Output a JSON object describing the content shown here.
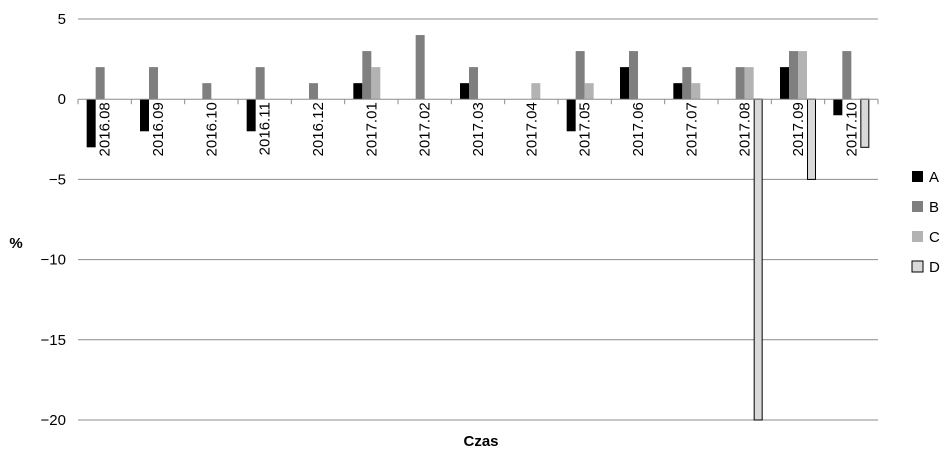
{
  "chart_data": {
    "type": "bar",
    "title": "",
    "xlabel": "Czas",
    "ylabel": "%",
    "ylim": [
      -20,
      5
    ],
    "yticks": [
      5,
      0,
      -5,
      -10,
      -15,
      -20
    ],
    "ytick_labels": [
      "5",
      "0",
      "−5",
      "−10",
      "−15",
      "−20"
    ],
    "grid": true,
    "legend_position": "right",
    "categories": [
      "2016.08",
      "2016.09",
      "2016.10",
      "2016.11",
      "2016.12",
      "2017.01",
      "2017.02",
      "2017.03",
      "2017.04",
      "2017.05",
      "2017.06",
      "2017.07",
      "2017.08",
      "2017.09",
      "2017.10"
    ],
    "series": [
      {
        "name": "A",
        "color": "#000000",
        "values": [
          -3,
          -2,
          0,
          -2,
          0,
          1,
          0,
          1,
          0,
          -2,
          2,
          1,
          0,
          2,
          -1
        ]
      },
      {
        "name": "B",
        "color": "#7f7f7f",
        "values": [
          2,
          2,
          1,
          2,
          1,
          3,
          4,
          2,
          0,
          3,
          3,
          2,
          2,
          3,
          3
        ]
      },
      {
        "name": "C",
        "color": "#b3b3b3",
        "values": [
          0,
          0,
          0,
          0,
          0,
          2,
          0,
          0,
          1,
          1,
          0,
          1,
          2,
          3,
          0
        ]
      },
      {
        "name": "D",
        "color": "#d9d9d9",
        "values": [
          0,
          0,
          0,
          0,
          0,
          0,
          0,
          0,
          0,
          0,
          0,
          0,
          -20,
          -5,
          -3
        ]
      }
    ]
  }
}
